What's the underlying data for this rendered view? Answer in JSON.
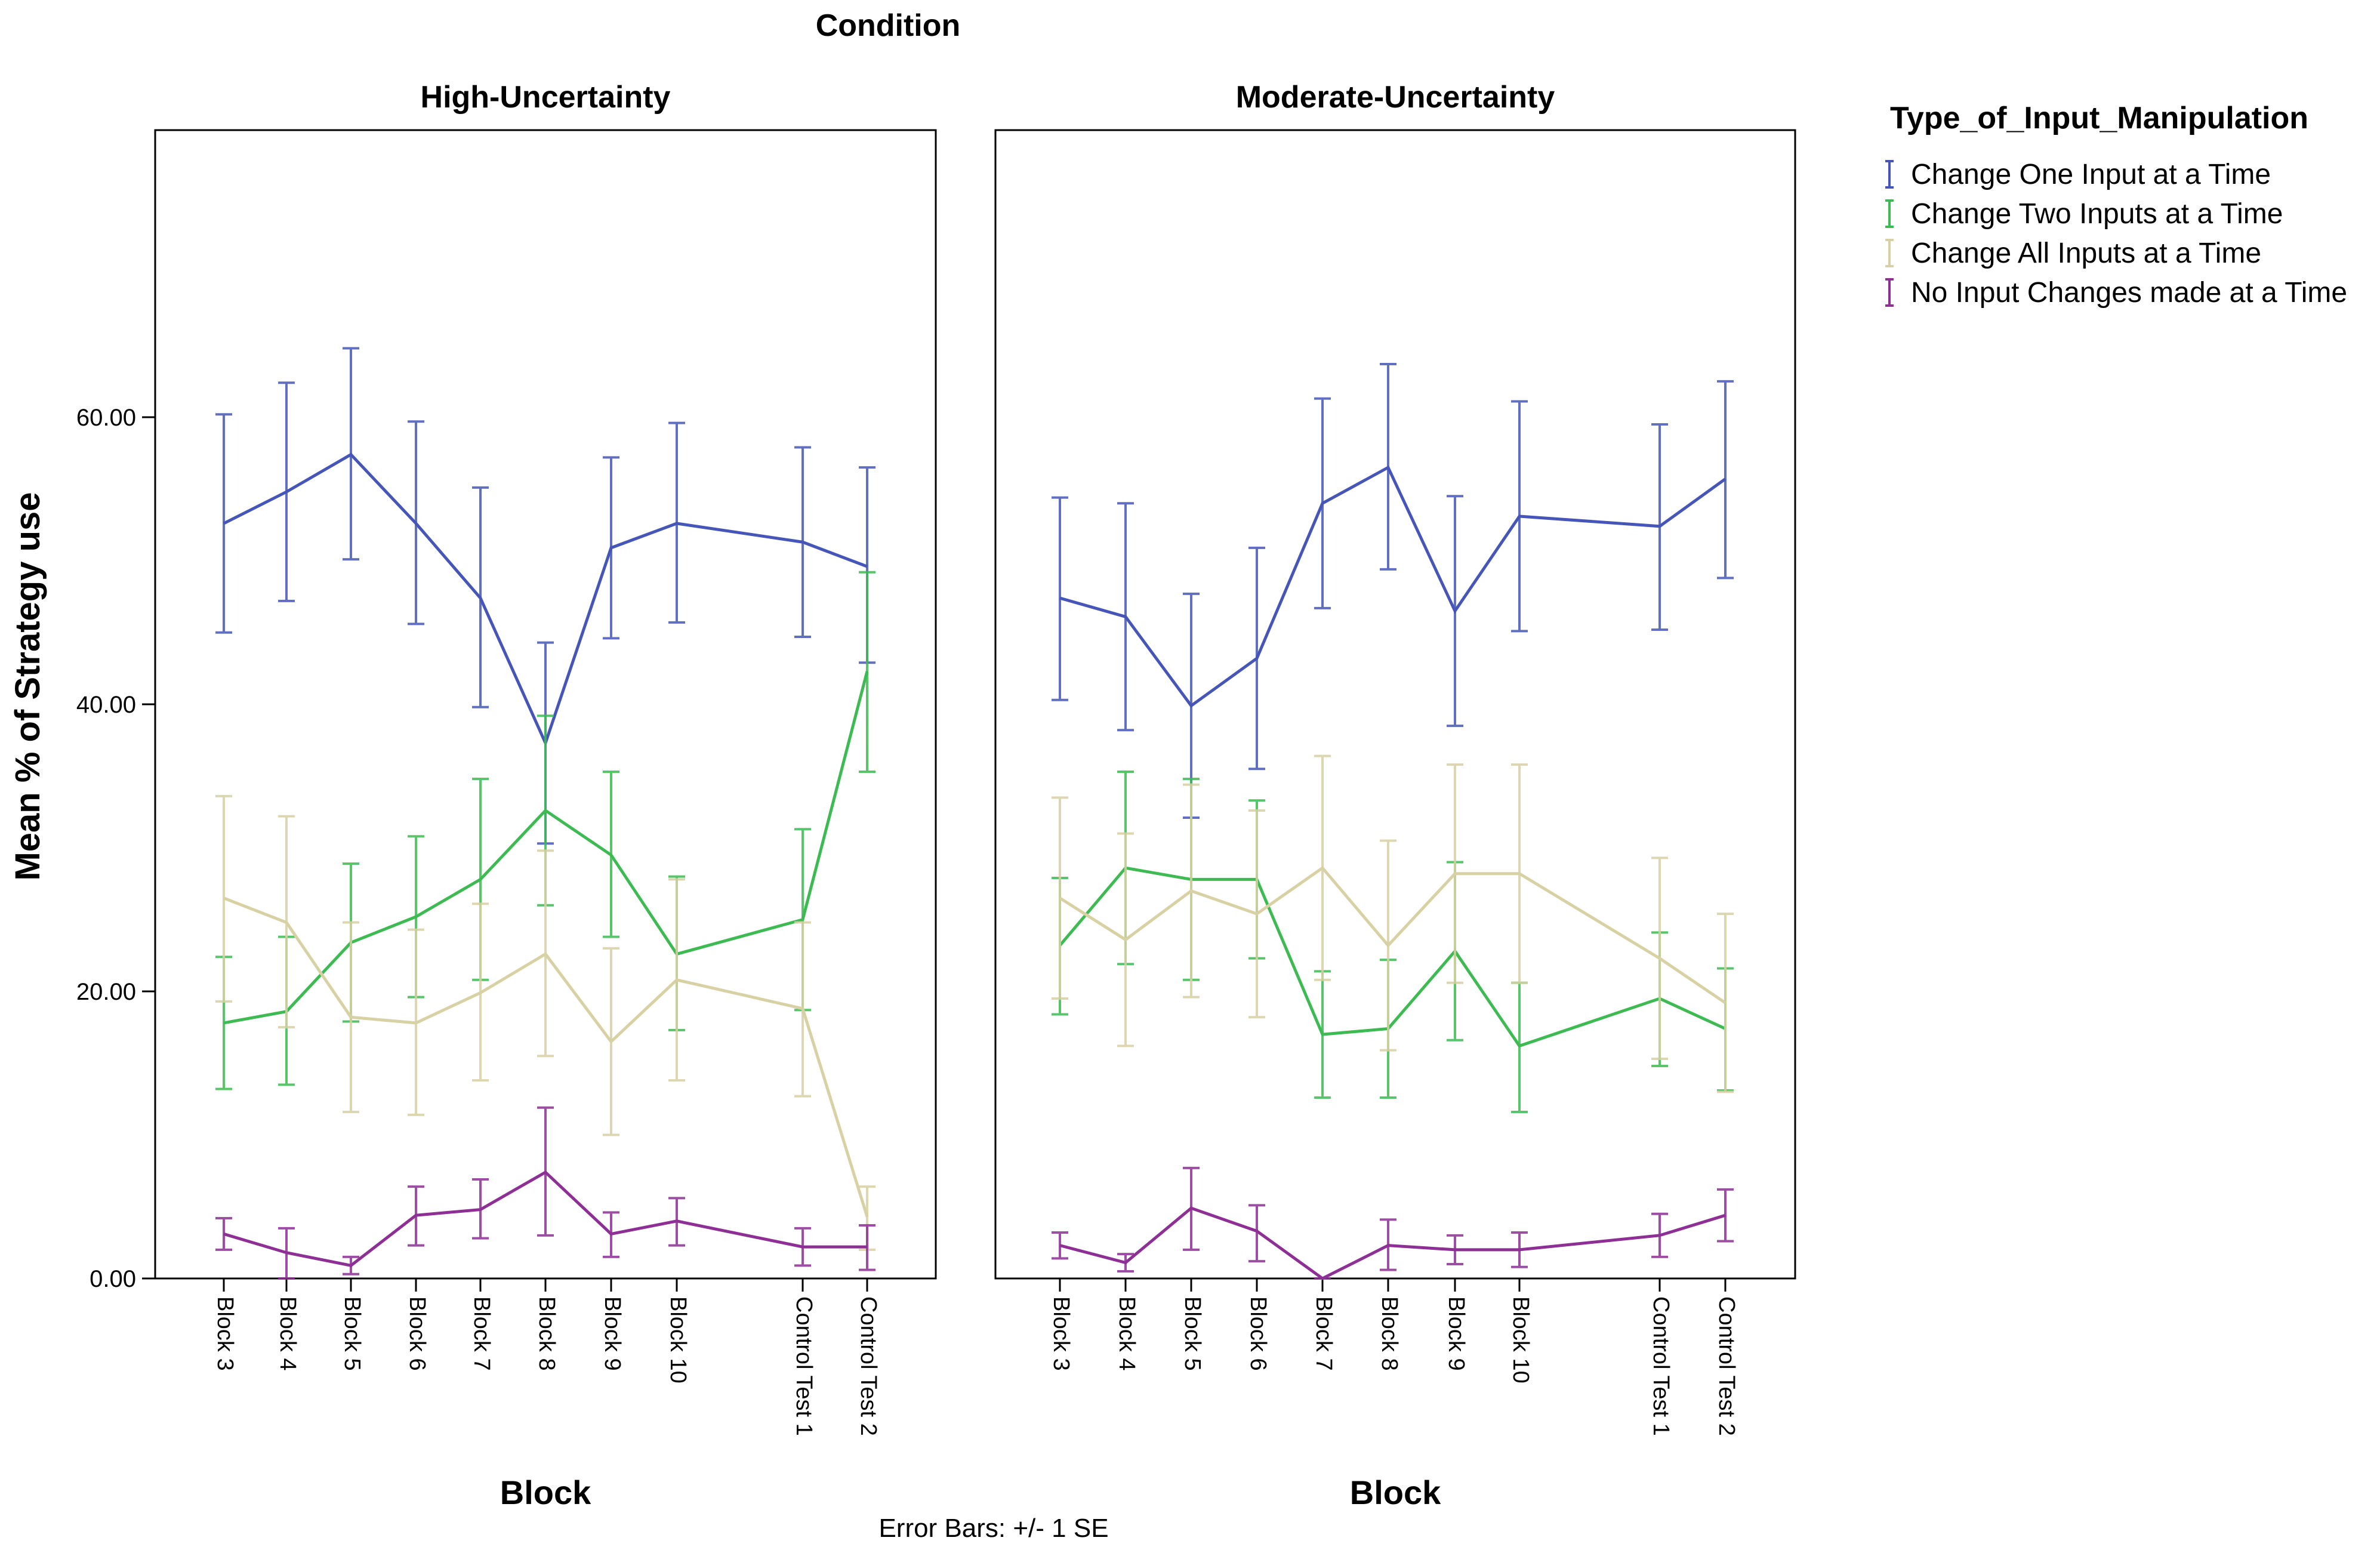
{
  "chart_data": {
    "type": "line",
    "supertitle": "Condition",
    "ylabel": "Mean % of Strategy use",
    "ylim": [
      0,
      80
    ],
    "yticks": [
      "0.00",
      "20.00",
      "40.00",
      "60.00"
    ],
    "grid": false,
    "legend_placement": "right",
    "footer": "Error Bars: +/- 1 SE",
    "legend": {
      "title": "Type_of_Input_Manipulation",
      "entries": [
        {
          "label": "Change One Input at a Time",
          "color": "#4656b8"
        },
        {
          "label": "Change Two Inputs at a Time",
          "color": "#3dbb52"
        },
        {
          "label": "Change All Inputs at a Time",
          "color": "#d7d1a3"
        },
        {
          "label": "No Input Changes made at a Time",
          "color": "#8e2f95"
        }
      ]
    },
    "panels": [
      {
        "title": "High-Uncertainty",
        "xlabel": "Block",
        "categories": [
          "Block 3",
          "Block 4",
          "Block 5",
          "Block 6",
          "Block 7",
          "Block 8",
          "Block 9",
          "Block 10",
          "Control Test 1",
          "Control Test 2"
        ],
        "series": [
          {
            "name": "Change One Input at a Time",
            "color": "#4656b8",
            "values": [
              52.6,
              54.8,
              57.4,
              52.6,
              47.4,
              37.3,
              50.9,
              52.6,
              51.3,
              49.6
            ],
            "lower": [
              45.0,
              47.2,
              50.1,
              45.6,
              39.8,
              30.3,
              44.6,
              45.7,
              44.7,
              42.9
            ],
            "upper": [
              60.2,
              62.4,
              64.8,
              59.7,
              55.1,
              44.3,
              57.2,
              59.6,
              57.9,
              56.5
            ]
          },
          {
            "name": "Change Two Inputs at a Time",
            "color": "#3dbb52",
            "values": [
              17.8,
              18.6,
              23.4,
              25.2,
              27.8,
              32.6,
              29.5,
              22.6,
              25.0,
              42.3
            ],
            "lower": [
              13.2,
              13.5,
              17.9,
              19.6,
              20.8,
              26.0,
              23.8,
              17.3,
              18.7,
              35.3
            ],
            "upper": [
              22.4,
              23.8,
              28.9,
              30.8,
              34.8,
              39.2,
              35.3,
              28.0,
              31.3,
              49.2
            ]
          },
          {
            "name": "Change All Inputs at a Time",
            "color": "#d7d1a3",
            "values": [
              26.5,
              24.8,
              18.2,
              17.8,
              19.9,
              22.6,
              16.5,
              20.8,
              18.8,
              4.3
            ],
            "lower": [
              19.3,
              17.5,
              11.6,
              11.4,
              13.8,
              15.5,
              10.0,
              13.8,
              12.7,
              2.0
            ],
            "upper": [
              33.6,
              32.2,
              24.8,
              24.3,
              26.1,
              29.8,
              23.0,
              27.8,
              24.8,
              6.4
            ]
          },
          {
            "name": "No Input Changes made at a Time",
            "color": "#8e2f95",
            "values": [
              3.1,
              1.8,
              0.9,
              4.4,
              4.8,
              7.4,
              3.1,
              4.0,
              2.2,
              2.2
            ],
            "lower": [
              2.0,
              0.0,
              0.3,
              2.3,
              2.8,
              3.0,
              1.5,
              2.3,
              0.9,
              0.6
            ],
            "upper": [
              4.2,
              3.5,
              1.5,
              6.4,
              6.9,
              11.9,
              4.6,
              5.6,
              3.5,
              3.7
            ]
          }
        ]
      },
      {
        "title": "Moderate-Uncertainty",
        "xlabel": "Block",
        "categories": [
          "Block 3",
          "Block 4",
          "Block 5",
          "Block 6",
          "Block 7",
          "Block 8",
          "Block 9",
          "Block 10",
          "Control Test 1",
          "Control Test 2"
        ],
        "series": [
          {
            "name": "Change One Input at a Time",
            "color": "#4656b8",
            "values": [
              47.4,
              46.1,
              39.9,
              43.2,
              54.0,
              56.5,
              46.5,
              53.1,
              52.4,
              55.7
            ],
            "lower": [
              40.3,
              38.2,
              32.1,
              35.5,
              46.7,
              49.4,
              38.5,
              45.1,
              45.2,
              48.8
            ],
            "upper": [
              54.4,
              54.0,
              47.7,
              50.9,
              61.3,
              63.7,
              54.5,
              61.1,
              59.5,
              62.5
            ]
          },
          {
            "name": "Change Two Inputs at a Time",
            "color": "#3dbb52",
            "values": [
              23.2,
              28.6,
              27.8,
              27.8,
              17.0,
              17.4,
              22.8,
              16.2,
              19.5,
              17.4
            ],
            "lower": [
              18.4,
              21.9,
              20.8,
              22.3,
              12.6,
              12.6,
              16.6,
              11.6,
              14.8,
              13.1
            ],
            "upper": [
              27.9,
              35.3,
              34.8,
              33.3,
              21.4,
              22.2,
              29.0,
              20.6,
              24.1,
              21.6
            ]
          },
          {
            "name": "Change All Inputs at a Time",
            "color": "#d7d1a3",
            "values": [
              26.5,
              23.6,
              27.0,
              25.4,
              28.6,
              23.2,
              28.2,
              28.2,
              22.3,
              19.2
            ],
            "lower": [
              19.5,
              16.2,
              19.6,
              18.2,
              20.8,
              15.9,
              20.6,
              20.6,
              15.3,
              13.0
            ],
            "upper": [
              33.5,
              31.0,
              34.4,
              32.6,
              36.4,
              30.5,
              35.8,
              35.8,
              29.3,
              25.4
            ]
          },
          {
            "name": "No Input Changes made at a Time",
            "color": "#8e2f95",
            "values": [
              2.3,
              1.1,
              4.9,
              3.3,
              0.0,
              2.3,
              2.0,
              2.0,
              3.0,
              4.4
            ],
            "lower": [
              1.4,
              0.5,
              2.0,
              1.2,
              0.0,
              0.6,
              1.0,
              0.8,
              1.5,
              2.6
            ],
            "upper": [
              3.2,
              1.7,
              7.7,
              5.1,
              0.0,
              4.1,
              3.0,
              3.2,
              4.5,
              6.2
            ]
          }
        ]
      }
    ]
  }
}
